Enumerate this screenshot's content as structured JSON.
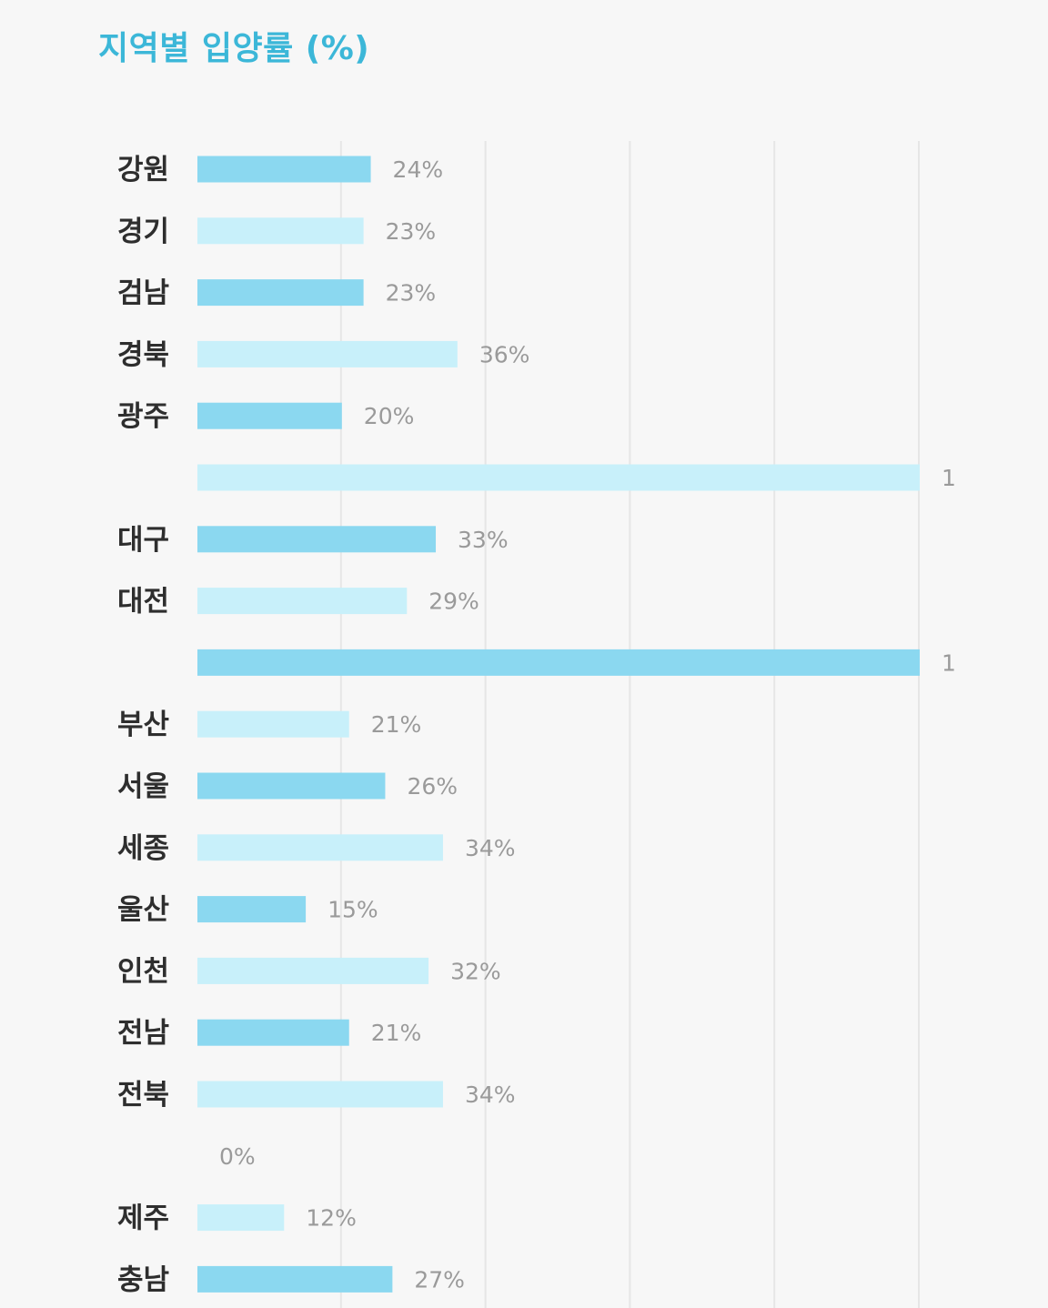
{
  "chart_data": {
    "type": "bar",
    "orientation": "horizontal",
    "title": "지역별 입양률 (%)",
    "xlabel": "",
    "ylabel": "",
    "grid": true,
    "xlim": [
      0,
      1
    ],
    "colors": [
      "#8bd8f0",
      "#c8f0fa"
    ],
    "categories": [
      "강원",
      "경기",
      "검남",
      "경북",
      "광주",
      "",
      "대구",
      "대전",
      "",
      "부산",
      "서울",
      "세종",
      "울산",
      "인천",
      "전남",
      "전북",
      "",
      "제주",
      "충남"
    ],
    "values": [
      0.24,
      0.23,
      0.23,
      0.36,
      0.2,
      1,
      0.33,
      0.29,
      1,
      0.21,
      0.26,
      0.34,
      0.15,
      0.32,
      0.21,
      0.34,
      0,
      0.12,
      0.27
    ],
    "value_labels": [
      "24%",
      "23%",
      "23%",
      "36%",
      "20%",
      "1",
      "33%",
      "29%",
      "1",
      "21%",
      "26%",
      "34%",
      "15%",
      "32%",
      "21%",
      "34%",
      "0%",
      "12%",
      "27%"
    ]
  }
}
